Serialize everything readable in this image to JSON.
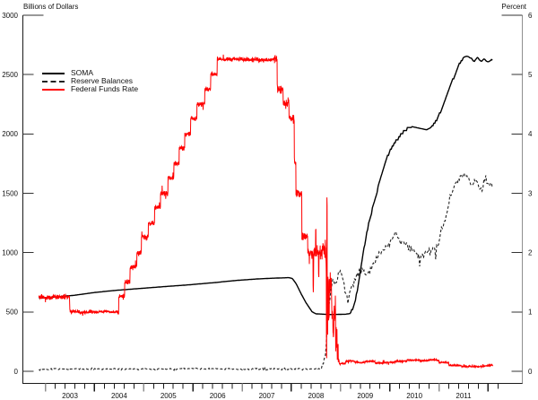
{
  "chart_data": {
    "type": "line",
    "title": "",
    "left_axis": {
      "label": "Billions of Dollars",
      "min": 0,
      "max": 3000,
      "tick_step": 500,
      "tick_labels": [
        "0",
        "500",
        "1000",
        "1500",
        "2000",
        "2500",
        "3000"
      ]
    },
    "right_axis": {
      "label": "Percent",
      "min": 0,
      "max": 6,
      "tick_step": 1,
      "tick_labels": [
        "0",
        "1",
        "2",
        "3",
        "4",
        "5",
        "6"
      ]
    },
    "x_axis": {
      "start": 2002.87,
      "end": 2012.1,
      "year_labels": [
        "2003",
        "2004",
        "2005",
        "2006",
        "2007",
        "2008",
        "2009",
        "2010",
        "2011"
      ],
      "first_label_year": 2003
    },
    "grid": false,
    "legend_position": "upper-left-inside",
    "legend": [
      {
        "label": "SOMA",
        "color": "#000000",
        "style": "solid"
      },
      {
        "label": "Reserve Balances",
        "color": "#222222",
        "style": "dashed"
      },
      {
        "label": "Federal Funds Rate",
        "color": "#ff0000",
        "style": "solid"
      }
    ],
    "frame_colors": {
      "left_bottom_axis": "#1a1a1a",
      "right_axis": "#8f8f8f",
      "tick": "#333333",
      "minor_tick_gray": "#8f8f8f"
    },
    "series": [
      {
        "name": "Reserve Balances",
        "axis": "left",
        "color": "#222222",
        "width": 1.1,
        "dash": "3,2.2",
        "interp": "linear",
        "sample": 0.0192,
        "seed": 13,
        "min": 3,
        "noise": [
          [
            2002.87,
            2008.6,
            7
          ],
          [
            2008.6,
            2009.0,
            25
          ],
          [
            2009.0,
            2012.1,
            34
          ]
        ],
        "keypoints": [
          [
            2002.87,
            18
          ],
          [
            2004.0,
            20
          ],
          [
            2005.0,
            19
          ],
          [
            2006.0,
            21
          ],
          [
            2007.0,
            19
          ],
          [
            2008.0,
            21
          ],
          [
            2008.6,
            22
          ],
          [
            2008.66,
            60
          ],
          [
            2008.7,
            160
          ],
          [
            2008.73,
            430
          ],
          [
            2008.76,
            560
          ],
          [
            2008.8,
            680
          ],
          [
            2008.85,
            780
          ],
          [
            2008.88,
            720
          ],
          [
            2008.92,
            765
          ],
          [
            2008.96,
            830
          ],
          [
            2009.0,
            855
          ],
          [
            2009.05,
            780
          ],
          [
            2009.1,
            655
          ],
          [
            2009.15,
            600
          ],
          [
            2009.22,
            700
          ],
          [
            2009.3,
            770
          ],
          [
            2009.38,
            830
          ],
          [
            2009.44,
            870
          ],
          [
            2009.5,
            815
          ],
          [
            2009.58,
            840
          ],
          [
            2009.66,
            890
          ],
          [
            2009.75,
            955
          ],
          [
            2009.85,
            1010
          ],
          [
            2009.95,
            1060
          ],
          [
            2010.05,
            1120
          ],
          [
            2010.12,
            1195
          ],
          [
            2010.2,
            1110
          ],
          [
            2010.3,
            1070
          ],
          [
            2010.4,
            1045
          ],
          [
            2010.5,
            1015
          ],
          [
            2010.6,
            985
          ],
          [
            2010.68,
            968
          ],
          [
            2010.78,
            1000
          ],
          [
            2010.88,
            1022
          ],
          [
            2010.96,
            1048
          ],
          [
            2011.05,
            1160
          ],
          [
            2011.15,
            1330
          ],
          [
            2011.25,
            1490
          ],
          [
            2011.35,
            1585
          ],
          [
            2011.45,
            1640
          ],
          [
            2011.52,
            1660
          ],
          [
            2011.6,
            1598
          ],
          [
            2011.68,
            1565
          ],
          [
            2011.76,
            1618
          ],
          [
            2011.84,
            1552
          ],
          [
            2011.92,
            1600
          ],
          [
            2012.0,
            1558
          ],
          [
            2012.06,
            1592
          ],
          [
            2012.1,
            1540
          ]
        ]
      },
      {
        "name": "SOMA",
        "axis": "left",
        "color": "#000000",
        "width": 1.4,
        "dash": "",
        "interp": "linear",
        "sample": 0.0192,
        "seed": 7,
        "min": 0,
        "noise": [
          [
            2011.5,
            2012.1,
            5
          ]
        ],
        "quantize": [
          [
            2009.2,
            2010.45,
            26
          ],
          [
            2010.85,
            2011.5,
            22
          ]
        ],
        "keypoints": [
          [
            2002.87,
            618
          ],
          [
            2003.2,
            626
          ],
          [
            2003.6,
            641
          ],
          [
            2004.0,
            664
          ],
          [
            2004.4,
            681
          ],
          [
            2004.9,
            697
          ],
          [
            2005.4,
            713
          ],
          [
            2005.9,
            728
          ],
          [
            2006.4,
            746
          ],
          [
            2006.9,
            766
          ],
          [
            2007.3,
            778
          ],
          [
            2007.6,
            784
          ],
          [
            2007.95,
            789
          ],
          [
            2008.02,
            782
          ],
          [
            2008.1,
            736
          ],
          [
            2008.2,
            652
          ],
          [
            2008.3,
            576
          ],
          [
            2008.42,
            502
          ],
          [
            2008.5,
            484
          ],
          [
            2008.8,
            478
          ],
          [
            2009.1,
            481
          ],
          [
            2009.2,
            487
          ],
          [
            2009.28,
            560
          ],
          [
            2009.35,
            700
          ],
          [
            2009.45,
            980
          ],
          [
            2009.55,
            1200
          ],
          [
            2009.65,
            1370
          ],
          [
            2009.75,
            1530
          ],
          [
            2009.85,
            1690
          ],
          [
            2009.95,
            1810
          ],
          [
            2010.05,
            1892
          ],
          [
            2010.15,
            1952
          ],
          [
            2010.25,
            2006
          ],
          [
            2010.35,
            2042
          ],
          [
            2010.45,
            2062
          ],
          [
            2010.6,
            2048
          ],
          [
            2010.75,
            2035
          ],
          [
            2010.83,
            2052
          ],
          [
            2010.95,
            2110
          ],
          [
            2011.1,
            2255
          ],
          [
            2011.25,
            2425
          ],
          [
            2011.4,
            2575
          ],
          [
            2011.5,
            2648
          ],
          [
            2011.58,
            2656
          ],
          [
            2011.65,
            2638
          ],
          [
            2011.72,
            2612
          ],
          [
            2011.78,
            2646
          ],
          [
            2011.85,
            2606
          ],
          [
            2011.92,
            2632
          ],
          [
            2012.0,
            2602
          ],
          [
            2012.06,
            2626
          ],
          [
            2012.1,
            2612
          ]
        ]
      },
      {
        "name": "Federal Funds Rate",
        "axis": "right",
        "color": "#ff0000",
        "width": 1,
        "dash": "",
        "interp": "step",
        "sample": 0.004,
        "seed": 42,
        "min": 0.02,
        "noise": [
          [
            2002.87,
            2003.6,
            0.04
          ],
          [
            2003.6,
            2004.45,
            0.025
          ],
          [
            2004.45,
            2006.5,
            0.04
          ],
          [
            2006.5,
            2007.65,
            0.03
          ],
          [
            2007.65,
            2008.35,
            0.07
          ],
          [
            2008.35,
            2008.67,
            0.1
          ],
          [
            2008.67,
            2008.97,
            0.22
          ],
          [
            2008.97,
            2012.1,
            0.013
          ]
        ],
        "keypoints": [
          [
            2002.87,
            1.26
          ],
          [
            2002.95,
            1.24
          ],
          [
            2003.1,
            1.25
          ],
          [
            2003.49,
            1.01
          ],
          [
            2003.7,
            0.99
          ],
          [
            2003.9,
            1.0
          ],
          [
            2004.1,
            1.01
          ],
          [
            2004.3,
            1.0
          ],
          [
            2004.49,
            1.26
          ],
          [
            2004.61,
            1.51
          ],
          [
            2004.72,
            1.76
          ],
          [
            2004.86,
            2.0
          ],
          [
            2004.95,
            2.26
          ],
          [
            2005.09,
            2.5
          ],
          [
            2005.22,
            2.76
          ],
          [
            2005.34,
            3.0
          ],
          [
            2005.49,
            3.26
          ],
          [
            2005.61,
            3.5
          ],
          [
            2005.72,
            3.76
          ],
          [
            2005.83,
            4.0
          ],
          [
            2005.95,
            4.26
          ],
          [
            2006.08,
            4.5
          ],
          [
            2006.24,
            4.76
          ],
          [
            2006.36,
            5.0
          ],
          [
            2006.49,
            5.26
          ],
          [
            2007.0,
            5.25
          ],
          [
            2007.71,
            4.76
          ],
          [
            2007.83,
            4.51
          ],
          [
            2007.95,
            4.26
          ],
          [
            2008.06,
            3.5
          ],
          [
            2008.09,
            3.0
          ],
          [
            2008.21,
            2.26
          ],
          [
            2008.33,
            2.0
          ],
          [
            2008.44,
            1.45
          ],
          [
            2008.452,
            2.02
          ],
          [
            2008.49,
            2.42
          ],
          [
            2008.5,
            2.0
          ],
          [
            2008.55,
            1.6
          ],
          [
            2008.56,
            2.0
          ],
          [
            2008.63,
            2.1
          ],
          [
            2008.7,
            1.8
          ],
          [
            2008.71,
            0.35
          ],
          [
            2008.718,
            2.95
          ],
          [
            2008.726,
            0.6
          ],
          [
            2008.74,
            1.6
          ],
          [
            2008.755,
            0.9
          ],
          [
            2008.77,
            1.5
          ],
          [
            2008.82,
            1.0
          ],
          [
            2008.845,
            0.65
          ],
          [
            2008.865,
            1.0
          ],
          [
            2008.9,
            0.52
          ],
          [
            2008.93,
            0.3
          ],
          [
            2008.962,
            0.13
          ],
          [
            2009.1,
            0.17
          ],
          [
            2009.3,
            0.15
          ],
          [
            2009.5,
            0.17
          ],
          [
            2009.7,
            0.14
          ],
          [
            2009.9,
            0.15
          ],
          [
            2010.1,
            0.17
          ],
          [
            2010.35,
            0.19
          ],
          [
            2010.6,
            0.18
          ],
          [
            2010.8,
            0.19
          ],
          [
            2011.0,
            0.15
          ],
          [
            2011.2,
            0.1
          ],
          [
            2011.45,
            0.08
          ],
          [
            2011.7,
            0.08
          ],
          [
            2011.9,
            0.09
          ],
          [
            2012.0,
            0.1
          ],
          [
            2012.1,
            0.08
          ]
        ]
      }
    ]
  }
}
